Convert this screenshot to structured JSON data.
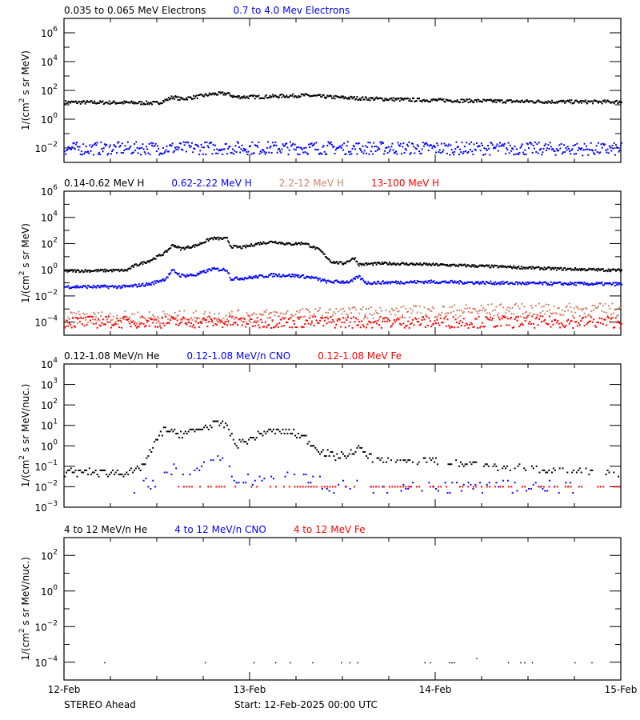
{
  "colors": {
    "black": "#000000",
    "blue": "#0000ff",
    "brown": "#d0846a",
    "red": "#ff0000"
  },
  "chart_data": [
    {
      "type": "scatter",
      "y_scale": "log",
      "ylabel": "1/(cm² s sr MeV)",
      "ylim": [
        0.001,
        10000000
      ],
      "ytick_exponents": [
        6,
        4,
        2,
        0,
        -2
      ],
      "xlim_hours": [
        0,
        72
      ],
      "legend": [
        {
          "label": "0.035 to 0.065 MeV Electrons",
          "color": "#000000"
        },
        {
          "label": "0.7 to 4.0 Mev Electrons",
          "color": "#0000ff"
        }
      ],
      "series": [
        {
          "name": "0.035 to 0.065 MeV Electrons",
          "color": "#000000",
          "points_hour_value": [
            [
              0,
              15
            ],
            [
              8,
              14
            ],
            [
              12,
              13
            ],
            [
              13,
              20
            ],
            [
              14,
              35
            ],
            [
              15,
              25
            ],
            [
              17,
              35
            ],
            [
              19,
              55
            ],
            [
              21,
              60
            ],
            [
              22,
              35
            ],
            [
              25,
              35
            ],
            [
              28,
              40
            ],
            [
              31,
              45
            ],
            [
              34,
              35
            ],
            [
              38,
              28
            ],
            [
              45,
              22
            ],
            [
              55,
              18
            ],
            [
              65,
              16
            ],
            [
              72,
              16
            ]
          ]
        },
        {
          "name": "0.7 to 4.0 Mev Electrons",
          "color": "#0000ff",
          "points_hour_value": [
            [
              0,
              0.009
            ],
            [
              20,
              0.01
            ],
            [
              40,
              0.01
            ],
            [
              60,
              0.009
            ],
            [
              72,
              0.008
            ]
          ]
        }
      ]
    },
    {
      "type": "scatter",
      "y_scale": "log",
      "ylabel": "1/(cm² s sr MeV)",
      "ylim": [
        1e-05,
        1000000
      ],
      "ytick_exponents": [
        6,
        4,
        2,
        0,
        -2,
        -4
      ],
      "xlim_hours": [
        0,
        72
      ],
      "legend": [
        {
          "label": "0.14-0.62 MeV H",
          "color": "#000000"
        },
        {
          "label": "0.62-2.22 MeV H",
          "color": "#0000ff"
        },
        {
          "label": "2.2-12 MeV H",
          "color": "#d0846a"
        },
        {
          "label": "13-100 MeV H",
          "color": "#ff0000"
        }
      ],
      "series": [
        {
          "name": "0.14-0.62 MeV H",
          "color": "#000000",
          "points_hour_value": [
            [
              0,
              0.8
            ],
            [
              8,
              0.9
            ],
            [
              9,
              2
            ],
            [
              11,
              5
            ],
            [
              13,
              20
            ],
            [
              14,
              80
            ],
            [
              15,
              40
            ],
            [
              17,
              70
            ],
            [
              19,
              250
            ],
            [
              21,
              230
            ],
            [
              21.5,
              60
            ],
            [
              23,
              50
            ],
            [
              25,
              100
            ],
            [
              27,
              140
            ],
            [
              29,
              90
            ],
            [
              31,
              110
            ],
            [
              33,
              30
            ],
            [
              34.5,
              4
            ],
            [
              36,
              3
            ],
            [
              37.5,
              8
            ],
            [
              38,
              2.5
            ],
            [
              41,
              3
            ],
            [
              42,
              3
            ],
            [
              47,
              2.5
            ],
            [
              55,
              1.8
            ],
            [
              63,
              1.2
            ],
            [
              72,
              0.9
            ]
          ]
        },
        {
          "name": "0.62-2.22 MeV H",
          "color": "#0000ff",
          "points_hour_value": [
            [
              0,
              0.05
            ],
            [
              8,
              0.05
            ],
            [
              11,
              0.08
            ],
            [
              13,
              0.2
            ],
            [
              14,
              0.9
            ],
            [
              15,
              0.35
            ],
            [
              17,
              0.4
            ],
            [
              19,
              1.1
            ],
            [
              21,
              1
            ],
            [
              21.5,
              0.2
            ],
            [
              24,
              0.25
            ],
            [
              27,
              0.4
            ],
            [
              30,
              0.35
            ],
            [
              32,
              0.25
            ],
            [
              34,
              0.12
            ],
            [
              37,
              0.12
            ],
            [
              38,
              0.3
            ],
            [
              39,
              0.1
            ],
            [
              47,
              0.12
            ],
            [
              60,
              0.09
            ],
            [
              72,
              0.08
            ]
          ]
        },
        {
          "name": "2.2-12 MeV H",
          "color": "#d0846a",
          "points_hour_value": [
            [
              0,
              0.0002
            ],
            [
              20,
              0.00025
            ],
            [
              40,
              0.0005
            ],
            [
              55,
              0.0008
            ],
            [
              72,
              0.0009
            ]
          ]
        },
        {
          "name": "13-100 MeV H",
          "color": "#ff0000",
          "points_hour_value": [
            [
              0,
              0.0001
            ],
            [
              36,
              0.0001
            ],
            [
              72,
              0.0001
            ]
          ]
        }
      ]
    },
    {
      "type": "scatter",
      "y_scale": "log",
      "ylabel": "1/(cm² s sr MeV/nuc.)",
      "ylim": [
        0.001,
        10000
      ],
      "ytick_exponents": [
        4,
        3,
        2,
        1,
        0,
        -1,
        -2,
        -3
      ],
      "xlim_hours": [
        0,
        72
      ],
      "legend": [
        {
          "label": "0.12-1.08 MeV/n He",
          "color": "#000000"
        },
        {
          "label": "0.12-1.08 MeV/n CNO",
          "color": "#0000ff"
        },
        {
          "label": "0.12-1.08 MeV Fe",
          "color": "#ff0000"
        }
      ],
      "series": [
        {
          "name": "0.12-1.08 MeV/n He",
          "color": "#000000",
          "points_hour_value": [
            [
              0,
              0.05
            ],
            [
              9,
              0.05
            ],
            [
              10,
              0.1
            ],
            [
              11,
              0.4
            ],
            [
              12,
              2
            ],
            [
              13,
              8
            ],
            [
              14,
              4
            ],
            [
              16,
              4
            ],
            [
              18,
              8
            ],
            [
              20,
              12
            ],
            [
              21,
              10
            ],
            [
              22,
              1.2
            ],
            [
              24,
              2
            ],
            [
              26,
              5
            ],
            [
              29,
              5
            ],
            [
              31,
              2.5
            ],
            [
              33,
              0.6
            ],
            [
              35,
              0.3
            ],
            [
              37,
              0.4
            ],
            [
              38,
              0.8
            ],
            [
              40,
              0.2
            ],
            [
              45,
              0.2
            ],
            [
              52,
              0.15
            ],
            [
              58,
              0.08
            ],
            [
              65,
              0.06
            ],
            [
              72,
              0.05
            ]
          ]
        },
        {
          "name": "0.12-1.08 MeV/n CNO",
          "color": "#0000ff",
          "points_hour_value": [
            [
              9,
              0.01
            ],
            [
              12,
              0.02
            ],
            [
              13,
              0.07
            ],
            [
              16,
              0.05
            ],
            [
              19,
              0.2
            ],
            [
              21,
              0.15
            ],
            [
              22,
              0.02
            ],
            [
              26,
              0.03
            ],
            [
              28,
              0.06
            ],
            [
              31,
              0.04
            ],
            [
              34,
              0.01
            ],
            [
              50,
              0.01
            ],
            [
              66,
              0.01
            ]
          ]
        },
        {
          "name": "0.12-1.08 MeV Fe",
          "color": "#ff0000",
          "points_hour_value": [
            [
              14,
              0.01
            ],
            [
              50,
              0.01
            ],
            [
              72,
              0.01
            ]
          ]
        }
      ]
    },
    {
      "type": "scatter",
      "y_scale": "log",
      "ylabel": "1/(cm² s sr MeV/nuc.)",
      "ylim": [
        1e-05,
        1000
      ],
      "ytick_exponents": [
        2,
        0,
        -2,
        -4
      ],
      "xlim_hours": [
        0,
        72
      ],
      "legend": [
        {
          "label": "4 to 12 MeV/n He",
          "color": "#000000"
        },
        {
          "label": "4 to 12 MeV/n CNO",
          "color": "#0000ff"
        },
        {
          "label": "4 to 12 MeV Fe",
          "color": "#ff0000"
        }
      ],
      "series": [
        {
          "name": "4 to 12 MeV/n He",
          "color": "#000000",
          "points_hour_value": [
            [
              5.2,
              0.0001
            ],
            [
              18.2,
              0.0001
            ],
            [
              24.5,
              0.0001
            ],
            [
              27.3,
              0.0001
            ],
            [
              29.2,
              0.0001
            ],
            [
              32.1,
              0.0001
            ],
            [
              35.8,
              0.0001
            ],
            [
              36.9,
              0.0001
            ],
            [
              37.9,
              0.0001
            ],
            [
              46.6,
              0.0001
            ],
            [
              47.3,
              0.0001
            ],
            [
              49.8,
              0.0001
            ],
            [
              50.1,
              0.0001
            ],
            [
              50.4,
              0.0001
            ],
            [
              53.3,
              0.00017
            ],
            [
              57.4,
              0.0001
            ],
            [
              59.0,
              0.0001
            ],
            [
              59.5,
              0.0001
            ],
            [
              60.5,
              0.0001
            ],
            [
              66.0,
              0.0001
            ],
            [
              68.2,
              0.0001
            ]
          ]
        }
      ]
    }
  ],
  "x_axis": {
    "tick_labels": [
      "12-Feb",
      "13-Feb",
      "14-Feb",
      "15-Feb"
    ]
  },
  "footer": {
    "spacecraft": "STEREO Ahead",
    "start": "Start: 12-Feb-2025 00:00 UTC"
  }
}
